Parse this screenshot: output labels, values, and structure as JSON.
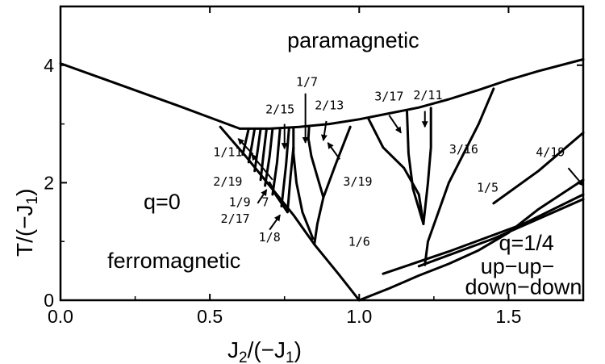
{
  "chart_data": {
    "type": "line",
    "title": "",
    "xlabel": {
      "main": "J",
      "sub": "2",
      "rest": "/(−J",
      "sub2": "1",
      "end": ")"
    },
    "ylabel": {
      "main": "T/(−J",
      "sub": "1",
      "end": ")"
    },
    "xlim": [
      0,
      1.75
    ],
    "ylim": [
      0,
      5
    ],
    "xticks": [
      0.0,
      0.5,
      1.0,
      1.5
    ],
    "xtick_labels": [
      "0.0",
      "0.5",
      "1.0",
      "1.5"
    ],
    "yticks": [
      0,
      2,
      4
    ],
    "ytick_labels": [
      "0",
      "2",
      "4"
    ],
    "grid": false,
    "region_labels": [
      {
        "id": "paramagnetic",
        "text": "paramagnetic",
        "x": 0.98,
        "y": 4.3
      },
      {
        "id": "q0",
        "text": "q=0",
        "x": 0.34,
        "y": 1.55
      },
      {
        "id": "ferromagnetic",
        "text": "ferromagnetic",
        "x": 0.38,
        "y": 0.55
      },
      {
        "id": "q14",
        "text": "q=1/4",
        "x": 1.56,
        "y": 0.85
      },
      {
        "id": "upup",
        "text": "up−up−",
        "x": 1.53,
        "y": 0.45
      },
      {
        "id": "downdown",
        "text": "down−down",
        "x": 1.55,
        "y": 0.1
      }
    ],
    "fraction_labels": [
      {
        "text": "1/7",
        "x": 0.825,
        "y": 3.65
      },
      {
        "text": "2/15",
        "x": 0.735,
        "y": 3.18
      },
      {
        "text": "2/13",
        "x": 0.9,
        "y": 3.25
      },
      {
        "text": "3/17",
        "x": 1.1,
        "y": 3.4
      },
      {
        "text": "2/11",
        "x": 1.23,
        "y": 3.42
      },
      {
        "text": "3/16",
        "x": 1.35,
        "y": 2.5
      },
      {
        "text": "1/11",
        "x": 0.56,
        "y": 2.45
      },
      {
        "text": "2/19",
        "x": 0.56,
        "y": 1.95
      },
      {
        "text": "3/19",
        "x": 0.995,
        "y": 1.95
      },
      {
        "text": "1/9",
        "x": 0.6,
        "y": 1.6
      },
      {
        "text": "7",
        "x": 0.686,
        "y": 1.6
      },
      {
        "text": "2/17",
        "x": 0.585,
        "y": 1.32
      },
      {
        "text": "1/8",
        "x": 0.7,
        "y": 1.0
      },
      {
        "text": "1/6",
        "x": 1.0,
        "y": 0.93
      },
      {
        "text": "1/5",
        "x": 1.43,
        "y": 1.85
      },
      {
        "text": "4/19",
        "x": 1.64,
        "y": 2.45
      }
    ],
    "arrows": [
      {
        "from": [
          0.645,
          2.48
        ],
        "to": [
          0.595,
          2.75
        ]
      },
      {
        "from": [
          0.75,
          3.0
        ],
        "to": [
          0.75,
          2.58
        ]
      },
      {
        "from": [
          0.82,
          3.52
        ],
        "to": [
          0.82,
          2.68
        ]
      },
      {
        "from": [
          0.89,
          3.05
        ],
        "to": [
          0.88,
          2.72
        ]
      },
      {
        "from": [
          1.1,
          3.15
        ],
        "to": [
          1.14,
          2.85
        ]
      },
      {
        "from": [
          1.22,
          3.22
        ],
        "to": [
          1.22,
          2.95
        ]
      },
      {
        "from": [
          0.935,
          2.4
        ],
        "to": [
          0.895,
          2.68
        ]
      },
      {
        "from": [
          0.71,
          2.05
        ],
        "to": [
          0.64,
          2.48
        ]
      },
      {
        "from": [
          0.66,
          1.65
        ],
        "to": [
          0.69,
          1.88
        ]
      },
      {
        "from": [
          0.7,
          1.2
        ],
        "to": [
          0.735,
          1.45
        ]
      },
      {
        "from": [
          1.7,
          2.25
        ],
        "to": [
          1.75,
          1.95
        ]
      }
    ],
    "boundary_series": [
      {
        "x": [
          0,
          0.4,
          0.6
        ],
        "y": [
          4.03,
          3.3,
          2.92
        ]
      },
      {
        "x": [
          0.6,
          0.7,
          0.8,
          0.9,
          1.0,
          1.1,
          1.2,
          1.3,
          1.4,
          1.5,
          1.6,
          1.75
        ],
        "y": [
          2.92,
          2.92,
          2.95,
          3.0,
          3.08,
          3.18,
          3.28,
          3.42,
          3.58,
          3.75,
          3.9,
          4.1
        ]
      },
      {
        "x": [
          0.535,
          0.62,
          0.7,
          0.78,
          0.85,
          0.93,
          1.0
        ],
        "y": [
          2.95,
          2.45,
          1.95,
          1.45,
          0.95,
          0.45,
          0
        ]
      },
      {
        "x": [
          1.0,
          1.1,
          1.2,
          1.3,
          1.4,
          1.5,
          1.6,
          1.75
        ],
        "y": [
          0,
          0.2,
          0.42,
          0.62,
          0.85,
          1.15,
          1.55,
          2.05
        ]
      },
      {
        "x": [
          1.08,
          1.3,
          1.55,
          1.75
        ],
        "y": [
          0.45,
          0.83,
          1.3,
          1.8
        ]
      },
      {
        "x": [
          1.2,
          1.45,
          1.75
        ],
        "y": [
          0.58,
          1.05,
          1.72
        ]
      },
      {
        "x": [
          1.45,
          1.6,
          1.75
        ],
        "y": [
          1.65,
          2.2,
          2.85
        ]
      },
      {
        "x": [
          0.85,
          0.86,
          0.88,
          0.92,
          0.97
        ],
        "y": [
          0.95,
          1.3,
          1.75,
          2.3,
          2.95
        ]
      },
      {
        "x": [
          0.88,
          0.86,
          0.84,
          0.83,
          0.832
        ],
        "y": [
          1.75,
          2.1,
          2.45,
          2.75,
          2.94
        ]
      },
      {
        "x": [
          0.845,
          0.81,
          0.79,
          0.78,
          0.78
        ],
        "y": [
          1.05,
          1.5,
          2.0,
          2.5,
          2.94
        ]
      },
      {
        "x": [
          1.215,
          1.2,
          1.15,
          1.08,
          1.03
        ],
        "y": [
          1.3,
          1.8,
          2.25,
          2.6,
          3.1
        ]
      },
      {
        "x": [
          1.215,
          1.23,
          1.24,
          1.24
        ],
        "y": [
          1.3,
          2.0,
          2.6,
          3.27
        ]
      },
      {
        "x": [
          1.215,
          1.18,
          1.165,
          1.16
        ],
        "y": [
          1.3,
          1.9,
          2.5,
          3.22
        ]
      },
      {
        "x": [
          1.22,
          1.23,
          1.3,
          1.4,
          1.45
        ],
        "y": [
          0.6,
          1.0,
          2.0,
          3.0,
          3.6
        ]
      },
      {
        "x": [
          0.61,
          0.62,
          0.63
        ],
        "y": [
          2.48,
          2.7,
          2.92
        ]
      },
      {
        "x": [
          0.63,
          0.64,
          0.65
        ],
        "y": [
          2.35,
          2.62,
          2.92
        ]
      },
      {
        "x": [
          0.65,
          0.66,
          0.67
        ],
        "y": [
          2.2,
          2.55,
          2.92
        ]
      },
      {
        "x": [
          0.67,
          0.68,
          0.69
        ],
        "y": [
          2.05,
          2.5,
          2.92
        ]
      },
      {
        "x": [
          0.685,
          0.7,
          0.71
        ],
        "y": [
          1.95,
          2.45,
          2.92
        ]
      },
      {
        "x": [
          0.71,
          0.725,
          0.735
        ],
        "y": [
          1.8,
          2.35,
          2.92
        ]
      },
      {
        "x": [
          0.74,
          0.755,
          0.765
        ],
        "y": [
          1.6,
          2.3,
          2.93
        ]
      },
      {
        "x": [
          0.76,
          0.72,
          0.7
        ],
        "y": [
          1.5,
          1.8,
          2.0
        ]
      },
      {
        "x": [
          0.76,
          0.77,
          0.78
        ],
        "y": [
          1.5,
          2.1,
          2.6
        ]
      }
    ]
  }
}
